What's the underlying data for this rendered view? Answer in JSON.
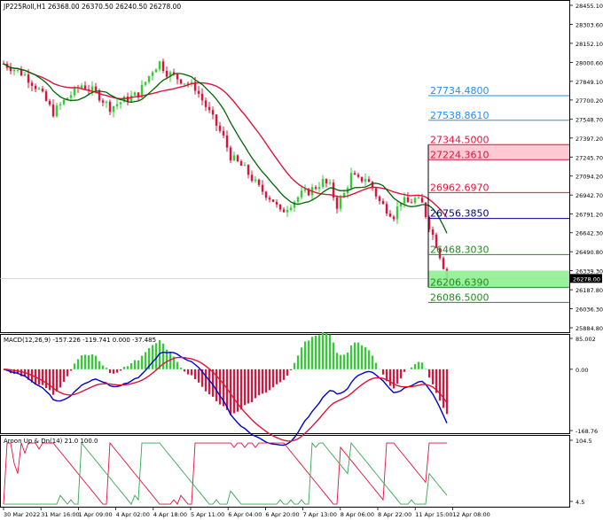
{
  "header": {
    "symbol_info": "JP225Roll,H1  26368.00 26370.50 26240.50 26278.00"
  },
  "price_axis": {
    "ticks": [
      "28455.10",
      "28303.60",
      "28152.10",
      "28000.60",
      "27849.10",
      "27700.20",
      "27548.70",
      "27397.20",
      "27245.70",
      "27094.20",
      "26942.70",
      "26791.20",
      "26642.30",
      "26490.80",
      "26339.30",
      "26187.80",
      "26036.30",
      "25884.80"
    ],
    "current_price": "26278.00"
  },
  "levels": [
    {
      "label": "27734.4800",
      "value": 27734.48,
      "color": "#1e90ff"
    },
    {
      "label": "27538.8610",
      "value": 27538.861,
      "color": "#1e90ff"
    },
    {
      "label": "27344.5000",
      "value": 27344.5,
      "color": "#dc143c"
    },
    {
      "label": "27224.3610",
      "value": 27224.361,
      "color": "#dc143c"
    },
    {
      "label": "26962.6970",
      "value": 26962.697,
      "color": "#dc143c"
    },
    {
      "label": "26756.3850",
      "value": 26756.385,
      "color": "#00008b"
    },
    {
      "label": "26468.3030",
      "value": 26468.303,
      "color": "#228b22"
    },
    {
      "label": "26206.6390",
      "value": 26206.639,
      "color": "#228b22"
    },
    {
      "label": "26086.5000",
      "value": 26086.5,
      "color": "#228b22"
    }
  ],
  "macd": {
    "title": "MACD(12,26,9) -157.226 -119.741 0.000 -37.485",
    "ticks": [
      "85.002",
      "0.00",
      "-168.76"
    ]
  },
  "aroon": {
    "title": "Aroon Up & Dn(14) 21.0 100.0",
    "ticks": [
      "104.5",
      "4.5"
    ]
  },
  "time_axis": {
    "labels": [
      "30 Mar 2022",
      "31 Mar 16:00",
      "1 Apr 09:00",
      "4 Apr 02:00",
      "4 Apr 18:00",
      "5 Apr 11:00",
      "6 Apr 04:00",
      "6 Apr 20:00",
      "7 Apr 13:00",
      "8 Apr 06:00",
      "8 Apr 22:00",
      "11 Apr 15:00",
      "12 Apr 08:00"
    ]
  },
  "colors": {
    "bull": "#32cd32",
    "bear": "#dc143c",
    "sma_fast": "#006400",
    "sma_slow": "#dc143c",
    "macd_line": "#0000cd",
    "signal_line": "#dc143c",
    "aroon_up": "#32a852",
    "aroon_dn": "#dc143c"
  }
}
